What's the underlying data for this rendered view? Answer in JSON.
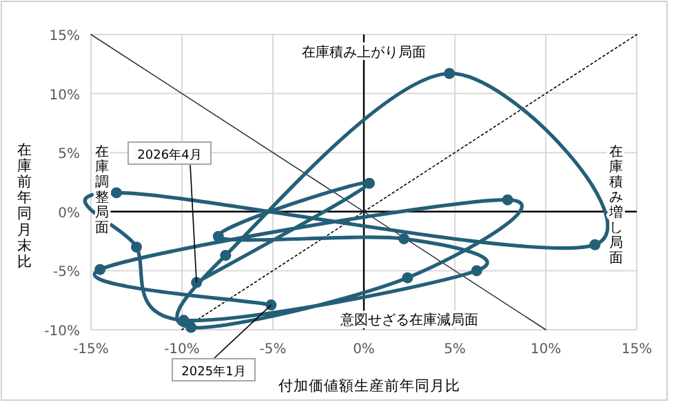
{
  "chart_data": {
    "type": "line",
    "xlabel": "付加価値額生産前年同月比",
    "ylabel": "在庫前年同月末比",
    "xlim": [
      -15,
      15
    ],
    "ylim": [
      -10,
      15
    ],
    "xticks": [
      {
        "value": -15,
        "label": "-15%"
      },
      {
        "value": -10,
        "label": "-10%"
      },
      {
        "value": -5,
        "label": "-5%"
      },
      {
        "value": 0,
        "label": "0%"
      },
      {
        "value": 5,
        "label": "5%"
      },
      {
        "value": 10,
        "label": "10%"
      },
      {
        "value": 15,
        "label": "15%"
      }
    ],
    "yticks": [
      {
        "value": -10,
        "label": "-10%"
      },
      {
        "value": -5,
        "label": "-5%"
      },
      {
        "value": 0,
        "label": "0%"
      },
      {
        "value": 5,
        "label": "5%"
      },
      {
        "value": 10,
        "label": "10%"
      },
      {
        "value": 15,
        "label": "15%"
      }
    ],
    "grid": true,
    "series": [
      {
        "type": "line",
        "color": "#000000",
        "line_style": "dotted",
        "marker": "none",
        "x": [
          -10,
          15
        ],
        "values": [
          -10,
          15
        ]
      },
      {
        "type": "line",
        "color": "#333333",
        "line_style": "solid",
        "marker": "none",
        "x": [
          -15,
          10
        ],
        "values": [
          15,
          -10
        ]
      },
      {
        "type": "line",
        "color": "#245f78",
        "line_style": "solid",
        "marker": "circle",
        "x": [
          -5.1,
          -14.5,
          7.9,
          2.4,
          -9.5,
          -7.6,
          4.7,
          12.7,
          -13.6,
          -12.5,
          -9.9,
          6.2,
          2.2,
          -8.0,
          0.3,
          -9.2
        ],
        "values": [
          -7.9,
          -4.9,
          1.0,
          -5.6,
          -9.8,
          -3.7,
          11.7,
          -2.8,
          1.6,
          -3.0,
          -9.2,
          -5.0,
          -2.3,
          -2.1,
          2.4,
          -6.0
        ]
      }
    ],
    "annotations": [
      "在庫積み上がり局面",
      "在庫積み増し局面",
      "在庫調整局面",
      "意図せざる在庫減局面",
      {
        "text": "2025年1月",
        "x": -5.1,
        "y": -7.9
      },
      {
        "text": "2026年4月",
        "x": -9.2,
        "y": -6.0
      }
    ]
  }
}
